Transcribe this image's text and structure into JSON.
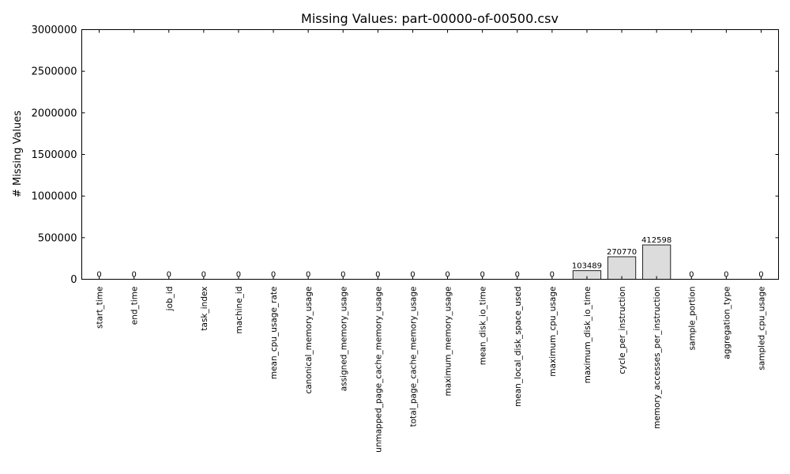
{
  "chart_data": {
    "type": "bar",
    "title": "Missing Values: part-00000-of-00500.csv",
    "xlabel": "",
    "ylabel": "# Missing Values",
    "ylim": [
      0,
      3000000
    ],
    "yticks": [
      0,
      500000,
      1000000,
      1500000,
      2000000,
      2500000,
      3000000
    ],
    "grid": false,
    "legend": "none",
    "bar_color": "#dcdcdc",
    "categories": [
      "start_time",
      "end_time",
      "job_id",
      "task_index",
      "machine_id",
      "mean_cpu_usage_rate",
      "canonical_memory_usage",
      "assigned_memory_usage",
      "unmapped_page_cache_memory_usage",
      "total_page_cache_memory_usage",
      "maximum_memory_usage",
      "mean_disk_io_time",
      "mean_local_disk_space_used",
      "maximum_cpu_usage",
      "maximum_disk_io_time",
      "cycle_per_instruction",
      "memory_accesses_per_instruction",
      "sample_portion",
      "aggregation_type",
      "sampled_cpu_usage"
    ],
    "values": [
      0,
      0,
      0,
      0,
      0,
      0,
      0,
      0,
      0,
      0,
      0,
      0,
      0,
      0,
      103489,
      270770,
      412598,
      0,
      0,
      0
    ]
  }
}
